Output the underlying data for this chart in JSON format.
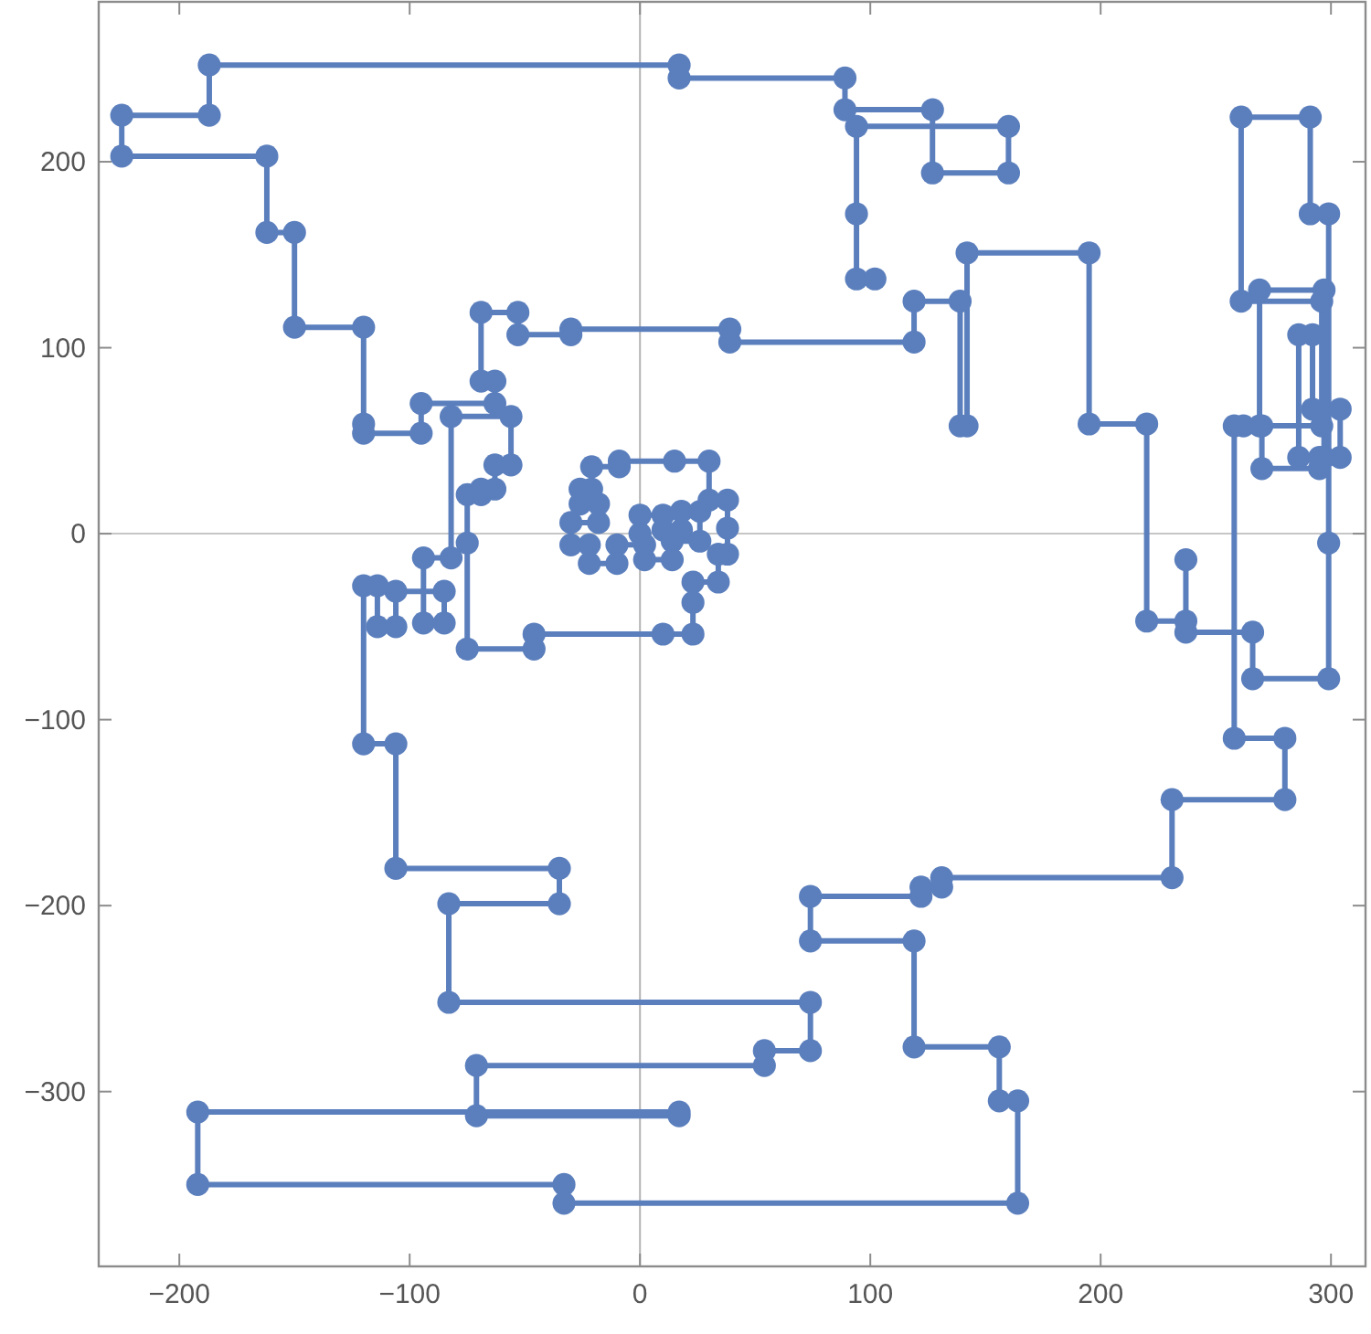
{
  "chart_data": {
    "type": "line",
    "marker": "circle",
    "line_style": "solid",
    "grid": false,
    "xlim": [
      -235,
      315
    ],
    "ylim": [
      -394,
      286
    ],
    "xticks": [
      -200,
      -100,
      0,
      100,
      200,
      300
    ],
    "yticks": [
      -300,
      -200,
      -100,
      0,
      100,
      200
    ],
    "ref_lines": [
      {
        "axis": "x",
        "value": 0,
        "color": "#b4b4b4"
      },
      {
        "axis": "y",
        "value": 0,
        "color": "#c6c6c6"
      }
    ],
    "series": [
      {
        "color": "#5b7fbd",
        "x": [
          0,
          0,
          10,
          10,
          18,
          18,
          26,
          26,
          14,
          14,
          2,
          2,
          -10,
          -10,
          -22,
          -22,
          -30,
          -30,
          -18,
          -18,
          -26,
          -26,
          -21,
          -21,
          -9,
          -9,
          15,
          30,
          30,
          38,
          38,
          38,
          34,
          34,
          23,
          23,
          23,
          10,
          -46,
          -46,
          -75,
          -75,
          -75,
          -69,
          -69,
          -63,
          -63,
          -56,
          -56,
          -82,
          -82,
          -94,
          -94,
          -85,
          -85,
          -106,
          -106,
          -114,
          -114,
          -120,
          -120,
          -106,
          -106,
          -35,
          -35,
          -83,
          -83,
          74,
          74,
          54,
          54,
          -71,
          -71,
          17,
          17,
          -192,
          -192,
          -33,
          -33,
          164,
          164,
          156,
          156,
          119,
          119,
          74,
          74,
          122,
          122,
          131,
          131,
          231,
          231,
          280,
          280,
          258,
          258,
          262,
          270,
          270,
          295,
          295,
          286,
          286,
          292,
          292,
          304,
          304,
          297,
          297,
          269,
          269,
          296,
          296,
          261,
          261,
          291,
          291,
          299,
          299,
          299,
          266,
          266,
          237,
          237,
          237,
          220,
          220,
          195,
          195,
          142,
          142,
          139,
          139,
          119,
          119,
          39,
          39,
          -30,
          -30,
          -53,
          -53,
          -69,
          -69,
          -63,
          -63,
          -95,
          -95,
          -120,
          -120,
          -120,
          -150,
          -150,
          -162,
          -162,
          -225,
          -225,
          -187,
          -187,
          17,
          17,
          89,
          89,
          127,
          127,
          160,
          160,
          94,
          94,
          94,
          102
        ],
        "values": [
          0,
          10,
          10,
          2,
          2,
          12,
          12,
          -4,
          -4,
          -14,
          -14,
          -6,
          -6,
          -16,
          -16,
          -6,
          -6,
          6,
          6,
          16,
          16,
          24,
          24,
          36,
          36,
          39,
          39,
          39,
          18,
          18,
          3,
          -11,
          -11,
          -26,
          -26,
          -37,
          -54,
          -54,
          -54,
          -62,
          -62,
          -5,
          21,
          21,
          24,
          24,
          37,
          37,
          63,
          63,
          -13,
          -13,
          -48,
          -48,
          -31,
          -31,
          -50,
          -50,
          -28,
          -28,
          -113,
          -113,
          -180,
          -180,
          -199,
          -199,
          -252,
          -252,
          -278,
          -278,
          -286,
          -286,
          -313,
          -313,
          -311,
          -311,
          -350,
          -350,
          -360,
          -360,
          -305,
          -305,
          -276,
          -276,
          -219,
          -219,
          -195,
          -195,
          -190,
          -190,
          -185,
          -185,
          -143,
          -143,
          -110,
          -110,
          58,
          58,
          58,
          35,
          35,
          41,
          41,
          107,
          107,
          67,
          67,
          41,
          41,
          131,
          131,
          58,
          58,
          125,
          125,
          224,
          224,
          172,
          172,
          -5,
          -78,
          -78,
          -53,
          -53,
          -14,
          -47,
          -47,
          59,
          59,
          151,
          151,
          58,
          58,
          125,
          125,
          103,
          103,
          110,
          110,
          107,
          107,
          119,
          119,
          82,
          82,
          70,
          70,
          54,
          54,
          59,
          111,
          111,
          162,
          162,
          203,
          203,
          225,
          225,
          252,
          252,
          245,
          245,
          228,
          228,
          194,
          194,
          219,
          219,
          172,
          137,
          137
        ]
      }
    ]
  }
}
